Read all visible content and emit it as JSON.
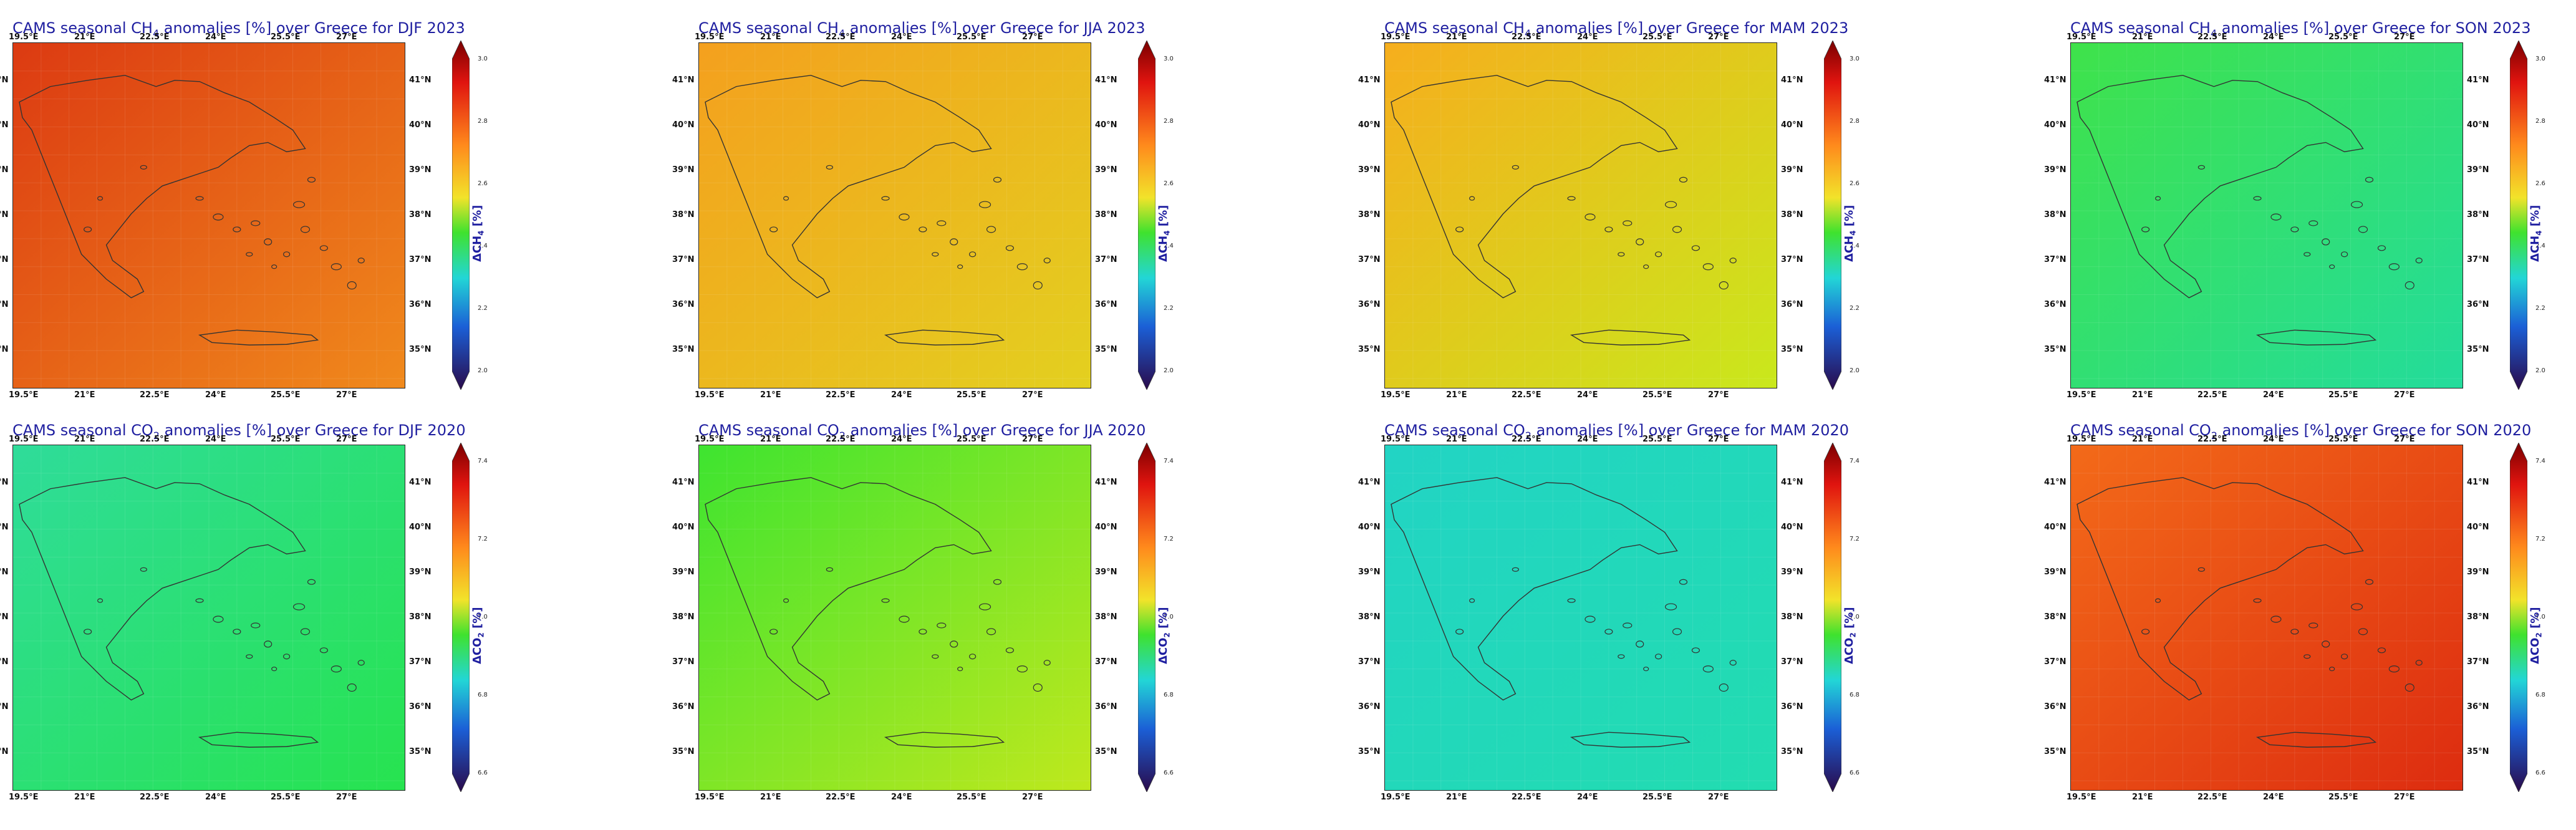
{
  "panels": [
    {
      "title_pre": "CAMS seasonal CH",
      "title_sub": "4",
      "title_post": " anomalies [%] over Greece for DJF 2023",
      "cbar_pre": "ΔCH",
      "cbar_sub": "4",
      "cbar_post": " [%]",
      "scale": "ch4",
      "grad": [
        "#dc3a12",
        "#f08a1c"
      ],
      "cb_ticks": [
        "3.0",
        "2.8",
        "2.6",
        "2.4",
        "2.2",
        "2.0"
      ]
    },
    {
      "title_pre": "CAMS seasonal CH",
      "title_sub": "4",
      "title_post": " anomalies [%] over Greece for JJA 2023",
      "cbar_pre": "ΔCH",
      "cbar_sub": "4",
      "cbar_post": " [%]",
      "scale": "ch4",
      "grad": [
        "#f4a01e",
        "#e3d01f"
      ],
      "cb_ticks": [
        "3.0",
        "2.8",
        "2.6",
        "2.4",
        "2.2",
        "2.0"
      ]
    },
    {
      "title_pre": "CAMS seasonal CH",
      "title_sub": "4",
      "title_post": " anomalies [%] over Greece for MAM 2023",
      "cbar_pre": "ΔCH",
      "cbar_sub": "4",
      "cbar_post": " [%]",
      "scale": "ch4",
      "grad": [
        "#f6ae1d",
        "#c9e81c"
      ],
      "cb_ticks": [
        "3.0",
        "2.8",
        "2.6",
        "2.4",
        "2.2",
        "2.0"
      ]
    },
    {
      "title_pre": "CAMS seasonal CH",
      "title_sub": "4",
      "title_post": " anomalies [%] over Greece for SON 2023",
      "cbar_pre": "ΔCH",
      "cbar_sub": "4",
      "cbar_post": " [%]",
      "scale": "ch4",
      "grad": [
        "#3fe24a",
        "#23dc9c"
      ],
      "cb_ticks": [
        "3.0",
        "2.8",
        "2.6",
        "2.4",
        "2.2",
        "2.0"
      ]
    },
    {
      "title_pre": "CAMS seasonal CO",
      "title_sub": "2",
      "title_post": " anomalies [%] over Greece for DJF 2020",
      "cbar_pre": "ΔCO",
      "cbar_sub": "2",
      "cbar_post": " [%]",
      "scale": "co2",
      "grad": [
        "#2fdc9a",
        "#27e34f"
      ],
      "cb_ticks": [
        "7.4",
        "7.2",
        "7.0",
        "6.8",
        "6.6"
      ]
    },
    {
      "title_pre": "CAMS seasonal CO",
      "title_sub": "2",
      "title_post": " anomalies [%] over Greece for JJA 2020",
      "cbar_pre": "ΔCO",
      "cbar_sub": "2",
      "cbar_post": " [%]",
      "scale": "co2",
      "grad": [
        "#3ee430",
        "#bfe81d"
      ],
      "cb_ticks": [
        "7.4",
        "7.2",
        "7.0",
        "6.8",
        "6.6"
      ]
    },
    {
      "title_pre": "CAMS seasonal CO",
      "title_sub": "2",
      "title_post": " anomalies [%] over Greece for MAM 2020",
      "cbar_pre": "ΔCO",
      "cbar_sub": "2",
      "cbar_post": " [%]",
      "scale": "co2",
      "grad": [
        "#22d4c4",
        "#22dcb0"
      ],
      "cb_ticks": [
        "7.4",
        "7.2",
        "7.0",
        "6.8",
        "6.6"
      ]
    },
    {
      "title_pre": "CAMS seasonal CO",
      "title_sub": "2",
      "title_post": " anomalies [%] over Greece for SON 2020",
      "cbar_pre": "ΔCO",
      "cbar_sub": "2",
      "cbar_post": " [%]",
      "scale": "co2",
      "grad": [
        "#f36a19",
        "#dd2c10"
      ],
      "cb_ticks": [
        "7.4",
        "7.2",
        "7.0",
        "6.8",
        "6.6"
      ]
    }
  ],
  "lon_ticks": [
    "19.5°E",
    "21°E",
    "22.5°E",
    "24°E",
    "25.5°E",
    "27°E"
  ],
  "lat_ticks": [
    "41°N",
    "40°N",
    "39°N",
    "38°N",
    "37°N",
    "36°N",
    "35°N"
  ]
}
